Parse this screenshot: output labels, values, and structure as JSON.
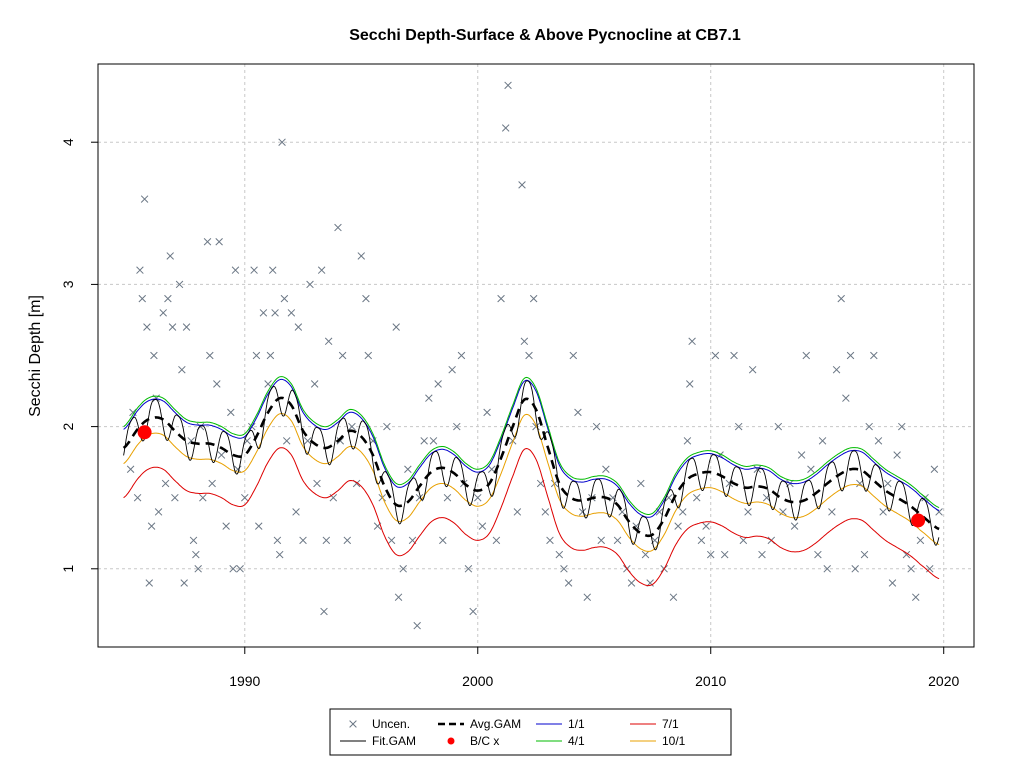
{
  "chart_data": {
    "type": "scatter",
    "title": "Secchi Depth-Surface & Above Pycnocline at CB7.1",
    "xlabel": "",
    "ylabel": "Secchi Depth [m]",
    "xlim": [
      1983.7,
      2021.3
    ],
    "ylim": [
      0.45,
      4.55
    ],
    "x_ticks": [
      1990,
      2000,
      2010,
      2020
    ],
    "y_ticks": [
      1,
      2,
      3,
      4
    ],
    "grid": true,
    "legend_position": "bottom-center",
    "colors": {
      "observations": "#6b7785",
      "fit_gam": "#000000",
      "avg_gam": "#000000",
      "bc": "#ff0000",
      "q1_1": "#0000cc",
      "q4_1": "#00bb00",
      "q7_1": "#dd0000",
      "q10_1": "#e8a000"
    },
    "legend": [
      {
        "key": "uncen",
        "label": "Uncen.",
        "symbol": "x",
        "color": "#6b7785"
      },
      {
        "key": "fit",
        "label": "Fit.GAM",
        "symbol": "line",
        "color": "#000000"
      },
      {
        "key": "avg",
        "label": "Avg.GAM",
        "symbol": "dash",
        "color": "#000000"
      },
      {
        "key": "bc",
        "label": "B/C x",
        "symbol": "dot",
        "color": "#ff0000"
      },
      {
        "key": "q1",
        "label": "1/1",
        "symbol": "line",
        "color": "#0000cc"
      },
      {
        "key": "q4",
        "label": "4/1",
        "symbol": "line",
        "color": "#00bb00"
      },
      {
        "key": "q7",
        "label": "7/1",
        "symbol": "line",
        "color": "#dd0000"
      },
      {
        "key": "q10",
        "label": "10/1",
        "symbol": "line",
        "color": "#e8a000"
      }
    ],
    "avg_gam": {
      "x": [
        1984.8,
        1985.5,
        1986.0,
        1986.5,
        1987.0,
        1987.5,
        1988.0,
        1988.5,
        1989.0,
        1989.5,
        1990.0,
        1990.5,
        1991.0,
        1991.5,
        1992.0,
        1992.5,
        1993.0,
        1993.5,
        1994.0,
        1994.5,
        1995.0,
        1995.5,
        1996.0,
        1996.5,
        1997.0,
        1997.5,
        1998.0,
        1998.5,
        1999.0,
        1999.5,
        2000.0,
        2000.5,
        2001.0,
        2001.5,
        2002.0,
        2002.5,
        2003.0,
        2003.5,
        2004.0,
        2004.5,
        2005.0,
        2005.5,
        2006.0,
        2006.5,
        2007.0,
        2007.5,
        2008.0,
        2008.5,
        2009.0,
        2009.5,
        2010.0,
        2010.5,
        2011.0,
        2011.5,
        2012.0,
        2012.5,
        2013.0,
        2013.5,
        2014.0,
        2014.5,
        2015.0,
        2015.5,
        2016.0,
        2016.5,
        2017.0,
        2017.5,
        2018.0,
        2018.5,
        2019.0,
        2019.8
      ],
      "y": [
        1.85,
        2.0,
        2.06,
        2.05,
        1.97,
        1.9,
        1.88,
        1.88,
        1.85,
        1.8,
        1.8,
        1.93,
        2.1,
        2.2,
        2.15,
        1.97,
        1.88,
        1.85,
        1.9,
        1.97,
        1.93,
        1.8,
        1.58,
        1.45,
        1.47,
        1.58,
        1.68,
        1.71,
        1.67,
        1.59,
        1.55,
        1.6,
        1.78,
        2.0,
        2.19,
        2.12,
        1.86,
        1.6,
        1.5,
        1.48,
        1.5,
        1.5,
        1.45,
        1.33,
        1.25,
        1.24,
        1.35,
        1.52,
        1.63,
        1.67,
        1.68,
        1.65,
        1.6,
        1.57,
        1.58,
        1.56,
        1.5,
        1.47,
        1.48,
        1.53,
        1.6,
        1.66,
        1.7,
        1.69,
        1.62,
        1.55,
        1.5,
        1.45,
        1.38,
        1.28
      ]
    },
    "quantile_offsets": {
      "q1_1": 0.13,
      "q4_1": 0.15,
      "q7_1": -0.35,
      "q10_1": -0.11
    },
    "seasonal": {
      "amplitude": 0.23,
      "phase": 0.15,
      "dip_sharpness": 3
    },
    "bc_points": [
      {
        "x": 1985.7,
        "y": 1.96
      },
      {
        "x": 2018.9,
        "y": 1.34
      }
    ],
    "observations": [
      [
        1985.1,
        1.7
      ],
      [
        1985.2,
        2.1
      ],
      [
        1985.4,
        1.5
      ],
      [
        1985.5,
        3.1
      ],
      [
        1985.6,
        2.9
      ],
      [
        1985.7,
        3.6
      ],
      [
        1985.8,
        2.7
      ],
      [
        1985.9,
        0.9
      ],
      [
        1986.0,
        1.3
      ],
      [
        1986.1,
        2.5
      ],
      [
        1986.2,
        2.2
      ],
      [
        1986.3,
        1.4
      ],
      [
        1986.5,
        2.8
      ],
      [
        1986.6,
        1.6
      ],
      [
        1986.7,
        2.9
      ],
      [
        1986.8,
        3.2
      ],
      [
        1986.9,
        2.7
      ],
      [
        1987.0,
        1.5
      ],
      [
        1987.2,
        3.0
      ],
      [
        1987.3,
        2.4
      ],
      [
        1987.4,
        0.9
      ],
      [
        1987.5,
        2.7
      ],
      [
        1987.7,
        1.9
      ],
      [
        1987.8,
        1.2
      ],
      [
        1987.9,
        1.1
      ],
      [
        1988.0,
        1.0
      ],
      [
        1988.1,
        2.0
      ],
      [
        1988.2,
        1.5
      ],
      [
        1988.4,
        3.3
      ],
      [
        1988.5,
        2.5
      ],
      [
        1988.6,
        1.6
      ],
      [
        1988.8,
        2.3
      ],
      [
        1988.9,
        3.3
      ],
      [
        1989.0,
        1.8
      ],
      [
        1989.2,
        1.3
      ],
      [
        1989.4,
        2.1
      ],
      [
        1989.5,
        1.0
      ],
      [
        1989.6,
        3.1
      ],
      [
        1989.7,
        1.7
      ],
      [
        1989.8,
        1.0
      ],
      [
        1990.0,
        1.5
      ],
      [
        1990.1,
        1.9
      ],
      [
        1990.3,
        2.0
      ],
      [
        1990.4,
        3.1
      ],
      [
        1990.5,
        2.5
      ],
      [
        1990.6,
        1.3
      ],
      [
        1990.8,
        2.8
      ],
      [
        1991.0,
        2.3
      ],
      [
        1991.1,
        2.5
      ],
      [
        1991.2,
        3.1
      ],
      [
        1991.3,
        2.8
      ],
      [
        1991.4,
        1.2
      ],
      [
        1991.5,
        1.1
      ],
      [
        1991.6,
        4.0
      ],
      [
        1991.7,
        2.9
      ],
      [
        1991.8,
        1.9
      ],
      [
        1992.0,
        2.8
      ],
      [
        1992.2,
        1.4
      ],
      [
        1992.3,
        2.7
      ],
      [
        1992.5,
        1.2
      ],
      [
        1992.7,
        1.9
      ],
      [
        1992.8,
        3.0
      ],
      [
        1993.0,
        2.3
      ],
      [
        1993.1,
        1.6
      ],
      [
        1993.3,
        3.1
      ],
      [
        1993.4,
        0.7
      ],
      [
        1993.5,
        1.2
      ],
      [
        1993.6,
        2.6
      ],
      [
        1993.8,
        1.5
      ],
      [
        1994.0,
        3.4
      ],
      [
        1994.1,
        1.9
      ],
      [
        1994.2,
        2.5
      ],
      [
        1994.4,
        1.2
      ],
      [
        1994.6,
        2.0
      ],
      [
        1994.8,
        1.6
      ],
      [
        1995.0,
        3.2
      ],
      [
        1995.2,
        2.9
      ],
      [
        1995.3,
        2.5
      ],
      [
        1995.5,
        1.9
      ],
      [
        1995.7,
        1.3
      ],
      [
        1995.9,
        1.5
      ],
      [
        1996.1,
        2.0
      ],
      [
        1996.3,
        1.2
      ],
      [
        1996.5,
        2.7
      ],
      [
        1996.6,
        0.8
      ],
      [
        1996.8,
        1.0
      ],
      [
        1997.0,
        1.7
      ],
      [
        1997.2,
        1.2
      ],
      [
        1997.4,
        0.6
      ],
      [
        1997.5,
        1.5
      ],
      [
        1997.7,
        1.9
      ],
      [
        1997.9,
        2.2
      ],
      [
        1998.1,
        1.9
      ],
      [
        1998.3,
        2.3
      ],
      [
        1998.5,
        1.2
      ],
      [
        1998.7,
        1.5
      ],
      [
        1998.9,
        2.4
      ],
      [
        1999.1,
        2.0
      ],
      [
        1999.3,
        2.5
      ],
      [
        1999.4,
        1.6
      ],
      [
        1999.6,
        1.0
      ],
      [
        1999.8,
        0.7
      ],
      [
        2000.0,
        1.5
      ],
      [
        2000.2,
        1.3
      ],
      [
        2000.4,
        2.1
      ],
      [
        2000.6,
        1.7
      ],
      [
        2000.8,
        1.2
      ],
      [
        2001.0,
        2.9
      ],
      [
        2001.2,
        4.1
      ],
      [
        2001.3,
        4.4
      ],
      [
        2001.5,
        1.9
      ],
      [
        2001.7,
        1.4
      ],
      [
        2001.9,
        3.7
      ],
      [
        2002.0,
        2.6
      ],
      [
        2002.2,
        2.5
      ],
      [
        2002.4,
        2.9
      ],
      [
        2002.5,
        2.0
      ],
      [
        2002.7,
        1.6
      ],
      [
        2002.9,
        1.4
      ],
      [
        2003.1,
        1.2
      ],
      [
        2003.3,
        1.6
      ],
      [
        2003.5,
        1.1
      ],
      [
        2003.7,
        1.0
      ],
      [
        2003.9,
        0.9
      ],
      [
        2004.1,
        2.5
      ],
      [
        2004.3,
        2.1
      ],
      [
        2004.5,
        1.4
      ],
      [
        2004.7,
        0.8
      ],
      [
        2004.9,
        1.5
      ],
      [
        2005.1,
        2.0
      ],
      [
        2005.3,
        1.2
      ],
      [
        2005.5,
        1.7
      ],
      [
        2005.8,
        1.5
      ],
      [
        2006.0,
        1.2
      ],
      [
        2006.2,
        1.4
      ],
      [
        2006.4,
        1.0
      ],
      [
        2006.6,
        0.9
      ],
      [
        2006.8,
        1.3
      ],
      [
        2007.0,
        1.6
      ],
      [
        2007.2,
        1.1
      ],
      [
        2007.4,
        0.9
      ],
      [
        2007.6,
        1.2
      ],
      [
        2007.8,
        1.4
      ],
      [
        2008.0,
        1.0
      ],
      [
        2008.2,
        1.5
      ],
      [
        2008.4,
        0.8
      ],
      [
        2008.6,
        1.3
      ],
      [
        2008.8,
        1.4
      ],
      [
        2009.0,
        1.9
      ],
      [
        2009.1,
        2.3
      ],
      [
        2009.2,
        2.6
      ],
      [
        2009.4,
        1.5
      ],
      [
        2009.6,
        1.2
      ],
      [
        2009.8,
        1.3
      ],
      [
        2010.0,
        1.1
      ],
      [
        2010.2,
        2.5
      ],
      [
        2010.4,
        1.8
      ],
      [
        2010.6,
        1.1
      ],
      [
        2010.8,
        1.6
      ],
      [
        2011.0,
        2.5
      ],
      [
        2011.2,
        2.0
      ],
      [
        2011.4,
        1.2
      ],
      [
        2011.6,
        1.4
      ],
      [
        2011.8,
        2.4
      ],
      [
        2012.0,
        1.7
      ],
      [
        2012.2,
        1.1
      ],
      [
        2012.4,
        1.5
      ],
      [
        2012.6,
        1.2
      ],
      [
        2012.9,
        2.0
      ],
      [
        2013.1,
        1.4
      ],
      [
        2013.4,
        1.6
      ],
      [
        2013.6,
        1.3
      ],
      [
        2013.9,
        1.8
      ],
      [
        2014.1,
        2.5
      ],
      [
        2014.3,
        1.7
      ],
      [
        2014.6,
        1.1
      ],
      [
        2014.8,
        1.9
      ],
      [
        2015.0,
        1.0
      ],
      [
        2015.2,
        1.4
      ],
      [
        2015.4,
        2.4
      ],
      [
        2015.6,
        2.9
      ],
      [
        2015.8,
        2.2
      ],
      [
        2016.0,
        2.5
      ],
      [
        2016.2,
        1.0
      ],
      [
        2016.4,
        1.6
      ],
      [
        2016.6,
        1.1
      ],
      [
        2016.8,
        2.0
      ],
      [
        2017.0,
        2.5
      ],
      [
        2017.2,
        1.9
      ],
      [
        2017.4,
        1.4
      ],
      [
        2017.6,
        1.6
      ],
      [
        2017.8,
        0.9
      ],
      [
        2018.0,
        1.8
      ],
      [
        2018.2,
        2.0
      ],
      [
        2018.4,
        1.1
      ],
      [
        2018.6,
        1.0
      ],
      [
        2018.8,
        0.8
      ],
      [
        2019.0,
        1.2
      ],
      [
        2019.2,
        1.5
      ],
      [
        2019.4,
        1.0
      ],
      [
        2019.6,
        1.7
      ],
      [
        2019.8,
        1.4
      ]
    ]
  }
}
